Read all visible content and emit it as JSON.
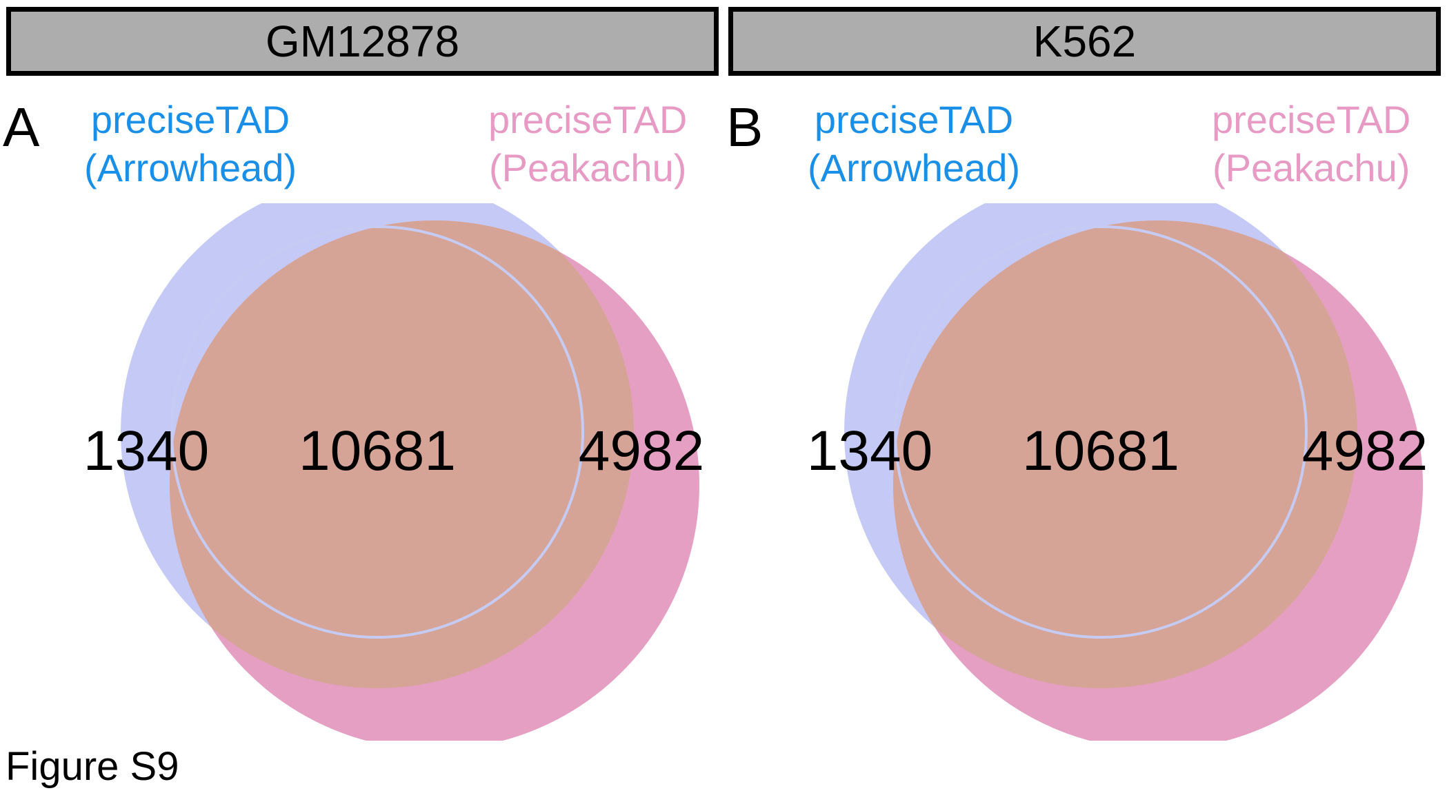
{
  "headers": {
    "left": "GM12878",
    "right": "K562"
  },
  "panels": [
    {
      "letter": "A",
      "set_a": {
        "line1": "preciseTAD",
        "line2": "(Arrowhead)",
        "color": "#1a8fe8",
        "fill": "#c4caf5"
      },
      "set_b": {
        "line1": "preciseTAD",
        "line2": "(Peakachu)",
        "color": "#e69ac4",
        "fill": "#e49fc2"
      },
      "overlap_fill": "#d6a496",
      "counts": {
        "only_a": "1340",
        "both": "10681",
        "only_b": "4982"
      }
    },
    {
      "letter": "B",
      "set_a": {
        "line1": "preciseTAD",
        "line2": "(Arrowhead)",
        "color": "#1a8fe8",
        "fill": "#c4caf5"
      },
      "set_b": {
        "line1": "preciseTAD",
        "line2": "(Peakachu)",
        "color": "#e69ac4",
        "fill": "#e49fc2"
      },
      "overlap_fill": "#d6a496",
      "counts": {
        "only_a": "1340",
        "both": "10681",
        "only_b": "4982"
      }
    }
  ],
  "figure_label": "Figure S9"
}
